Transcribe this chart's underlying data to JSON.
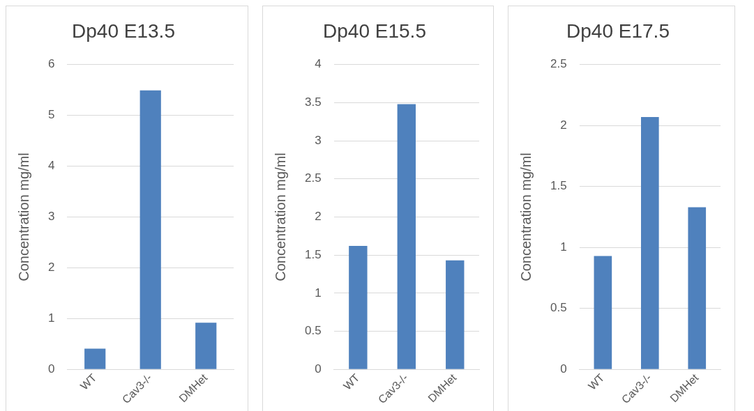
{
  "chart_data": [
    {
      "type": "bar",
      "title": "Dp40 E13.5",
      "ylabel": "Concentration mg/ml",
      "categories": [
        "WT",
        "Cav3-/-",
        "DMHet"
      ],
      "values": [
        0.41,
        5.49,
        0.92
      ],
      "color": "#4f81bd",
      "ylim": [
        0,
        6
      ],
      "yticks": [
        0,
        1,
        2,
        3,
        4,
        5,
        6
      ],
      "grid": "y",
      "legend": false
    },
    {
      "type": "bar",
      "title": "Dp40 E15.5",
      "ylabel": "Concentration mg/ml",
      "categories": [
        "WT",
        "Cav3-/-",
        "DMHet"
      ],
      "values": [
        1.62,
        3.48,
        1.43
      ],
      "color": "#4f81bd",
      "ylim": [
        0,
        4
      ],
      "yticks": [
        0,
        0.5,
        1,
        1.5,
        2,
        2.5,
        3,
        3.5,
        4
      ],
      "grid": "y",
      "legend": false
    },
    {
      "type": "bar",
      "title": "Dp40 E17.5",
      "ylabel": "Concentration mg/ml",
      "categories": [
        "WT",
        "Cav3-/-",
        "DMHet"
      ],
      "values": [
        0.93,
        2.07,
        1.33
      ],
      "color": "#4f81bd",
      "ylim": [
        0,
        2.5
      ],
      "yticks": [
        0,
        0.5,
        1,
        1.5,
        2,
        2.5
      ],
      "grid": "y",
      "legend": false
    }
  ]
}
